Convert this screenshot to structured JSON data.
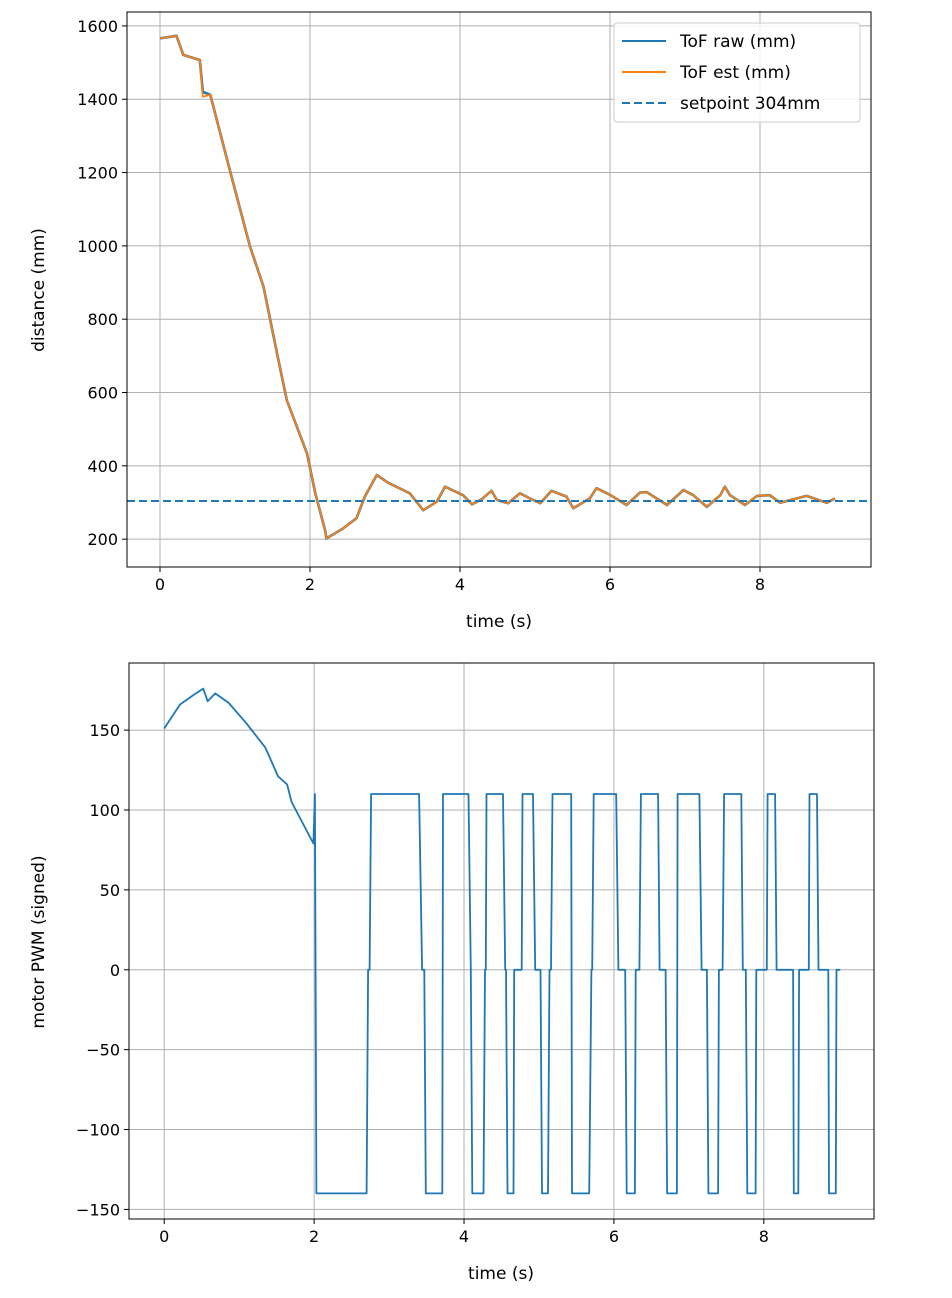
{
  "colors": {
    "raw": "#1f77b4",
    "est": "#ff7f0e",
    "setpoint": "#1f77b4",
    "pwm": "#1f77b4"
  },
  "chart_data": [
    {
      "type": "line",
      "xlabel": "time (s)",
      "ylabel": "distance (mm)",
      "xlim": [
        -0.44,
        9.48
      ],
      "ylim": [
        124,
        1638
      ],
      "xticks": [
        0,
        2,
        4,
        6,
        8
      ],
      "yticks": [
        200,
        400,
        600,
        800,
        1000,
        1200,
        1400,
        1600
      ],
      "grid": true,
      "legend": "top-right",
      "series": [
        {
          "name": "ToF raw (mm)",
          "style": "solid",
          "x": [
            0,
            0.22,
            0.31,
            0.53,
            0.57,
            0.67,
            0.93,
            1.2,
            1.38,
            1.56,
            1.69,
            1.96,
            2.07,
            2.2,
            2.22,
            2.44,
            2.62,
            2.73,
            2.89,
            3.04,
            3.33,
            3.51,
            3.69,
            3.8,
            4.04,
            4.16,
            4.29,
            4.42,
            4.49,
            4.64,
            4.8,
            4.93,
            5.07,
            5.22,
            5.42,
            5.51,
            5.73,
            5.82,
            6.0,
            6.22,
            6.4,
            6.49,
            6.76,
            6.98,
            7.11,
            7.29,
            7.47,
            7.53,
            7.6,
            7.8,
            7.96,
            8.13,
            8.27,
            8.62,
            8.89,
            9.0
          ],
          "y": [
            1566,
            1573,
            1521,
            1507,
            1420,
            1412,
            1207,
            998,
            889,
            707,
            579,
            434,
            325,
            225,
            202,
            229,
            257,
            316,
            375,
            354,
            325,
            279,
            302,
            343,
            320,
            295,
            309,
            332,
            307,
            298,
            325,
            311,
            298,
            332,
            316,
            284,
            311,
            339,
            321,
            293,
            327,
            328,
            293,
            334,
            320,
            288,
            320,
            343,
            320,
            293,
            318,
            320,
            299,
            318,
            299,
            311
          ]
        },
        {
          "name": "ToF est (mm)",
          "style": "solid",
          "x": [
            0,
            0.22,
            0.31,
            0.53,
            0.57,
            0.67,
            0.93,
            1.2,
            1.38,
            1.56,
            1.69,
            1.96,
            2.07,
            2.2,
            2.22,
            2.44,
            2.62,
            2.73,
            2.89,
            3.04,
            3.33,
            3.51,
            3.69,
            3.8,
            4.04,
            4.16,
            4.29,
            4.42,
            4.49,
            4.64,
            4.8,
            4.93,
            5.07,
            5.22,
            5.42,
            5.51,
            5.73,
            5.82,
            6.0,
            6.22,
            6.4,
            6.49,
            6.76,
            6.98,
            7.11,
            7.29,
            7.47,
            7.53,
            7.6,
            7.8,
            7.96,
            8.13,
            8.27,
            8.62,
            8.89,
            9.0
          ],
          "y": [
            1566,
            1573,
            1521,
            1507,
            1407,
            1412,
            1207,
            998,
            889,
            707,
            579,
            434,
            325,
            225,
            202,
            229,
            257,
            316,
            375,
            354,
            325,
            279,
            302,
            343,
            320,
            295,
            309,
            332,
            307,
            298,
            325,
            311,
            298,
            332,
            316,
            284,
            311,
            339,
            321,
            293,
            327,
            328,
            293,
            334,
            320,
            288,
            320,
            343,
            320,
            293,
            318,
            320,
            299,
            318,
            299,
            311
          ]
        },
        {
          "name": "setpoint 304mm",
          "style": "dashed",
          "y_const": 304
        }
      ]
    },
    {
      "type": "line",
      "xlabel": "time (s)",
      "ylabel": "motor PWM (signed)",
      "xlim": [
        -0.47,
        9.47
      ],
      "ylim": [
        -156,
        192
      ],
      "xticks": [
        0,
        2,
        4,
        6,
        8
      ],
      "yticks": [
        -150,
        -100,
        -50,
        0,
        50,
        100,
        150
      ],
      "ytick_labels": [
        "−150",
        "−100",
        "−50",
        "0",
        "50",
        "100",
        "150"
      ],
      "grid": true,
      "series": [
        {
          "x": [
            0,
            0.21,
            0.39,
            0.52,
            0.58,
            0.68,
            0.86,
            1.1,
            1.35,
            1.52,
            1.64,
            1.7,
            1.99,
            2.01,
            2.01,
            2.03,
            2.7,
            2.72,
            2.74,
            2.76,
            3.4,
            3.44,
            3.47,
            3.49,
            3.71,
            3.72,
            4.06,
            4.09,
            4.09,
            4.11,
            4.26,
            4.28,
            4.29,
            4.3,
            4.52,
            4.55,
            4.56,
            4.58,
            4.66,
            4.67,
            4.77,
            4.78,
            4.92,
            4.95,
            5.02,
            5.04,
            5.12,
            5.14,
            5.16,
            5.18,
            5.43,
            5.44,
            5.67,
            5.7,
            5.71,
            5.73,
            6.03,
            6.06,
            6.15,
            6.17,
            6.28,
            6.29,
            6.34,
            6.36,
            6.59,
            6.61,
            6.69,
            6.71,
            6.84,
            6.85,
            7.14,
            7.17,
            7.24,
            7.26,
            7.39,
            7.4,
            7.45,
            7.47,
            7.7,
            7.72,
            7.76,
            7.78,
            7.89,
            7.9,
            8.04,
            8.05,
            8.15,
            8.17,
            8.39,
            8.4,
            8.46,
            8.47,
            8.6,
            8.61,
            8.71,
            8.73,
            8.86,
            8.87,
            8.96,
            8.97,
            9.02
          ],
          "y": [
            151,
            166,
            172,
            176,
            168,
            173,
            167,
            154,
            139,
            121,
            116,
            105,
            79,
            110,
            110,
            -140,
            -140,
            0,
            0,
            110,
            110,
            0,
            0,
            -140,
            -140,
            110,
            110,
            0,
            0,
            -140,
            -140,
            0,
            0,
            110,
            110,
            0,
            0,
            -140,
            -140,
            0,
            0,
            110,
            110,
            0,
            0,
            -140,
            -140,
            0,
            0,
            110,
            110,
            -140,
            -140,
            0,
            0,
            110,
            110,
            0,
            0,
            -140,
            -140,
            0,
            0,
            110,
            110,
            0,
            0,
            -140,
            -140,
            110,
            110,
            0,
            0,
            -140,
            -140,
            0,
            0,
            110,
            110,
            0,
            0,
            -140,
            -140,
            0,
            0,
            110,
            110,
            0,
            0,
            -140,
            -140,
            0,
            0,
            110,
            110,
            0,
            0,
            -140,
            -140,
            0,
            0
          ]
        }
      ]
    }
  ]
}
